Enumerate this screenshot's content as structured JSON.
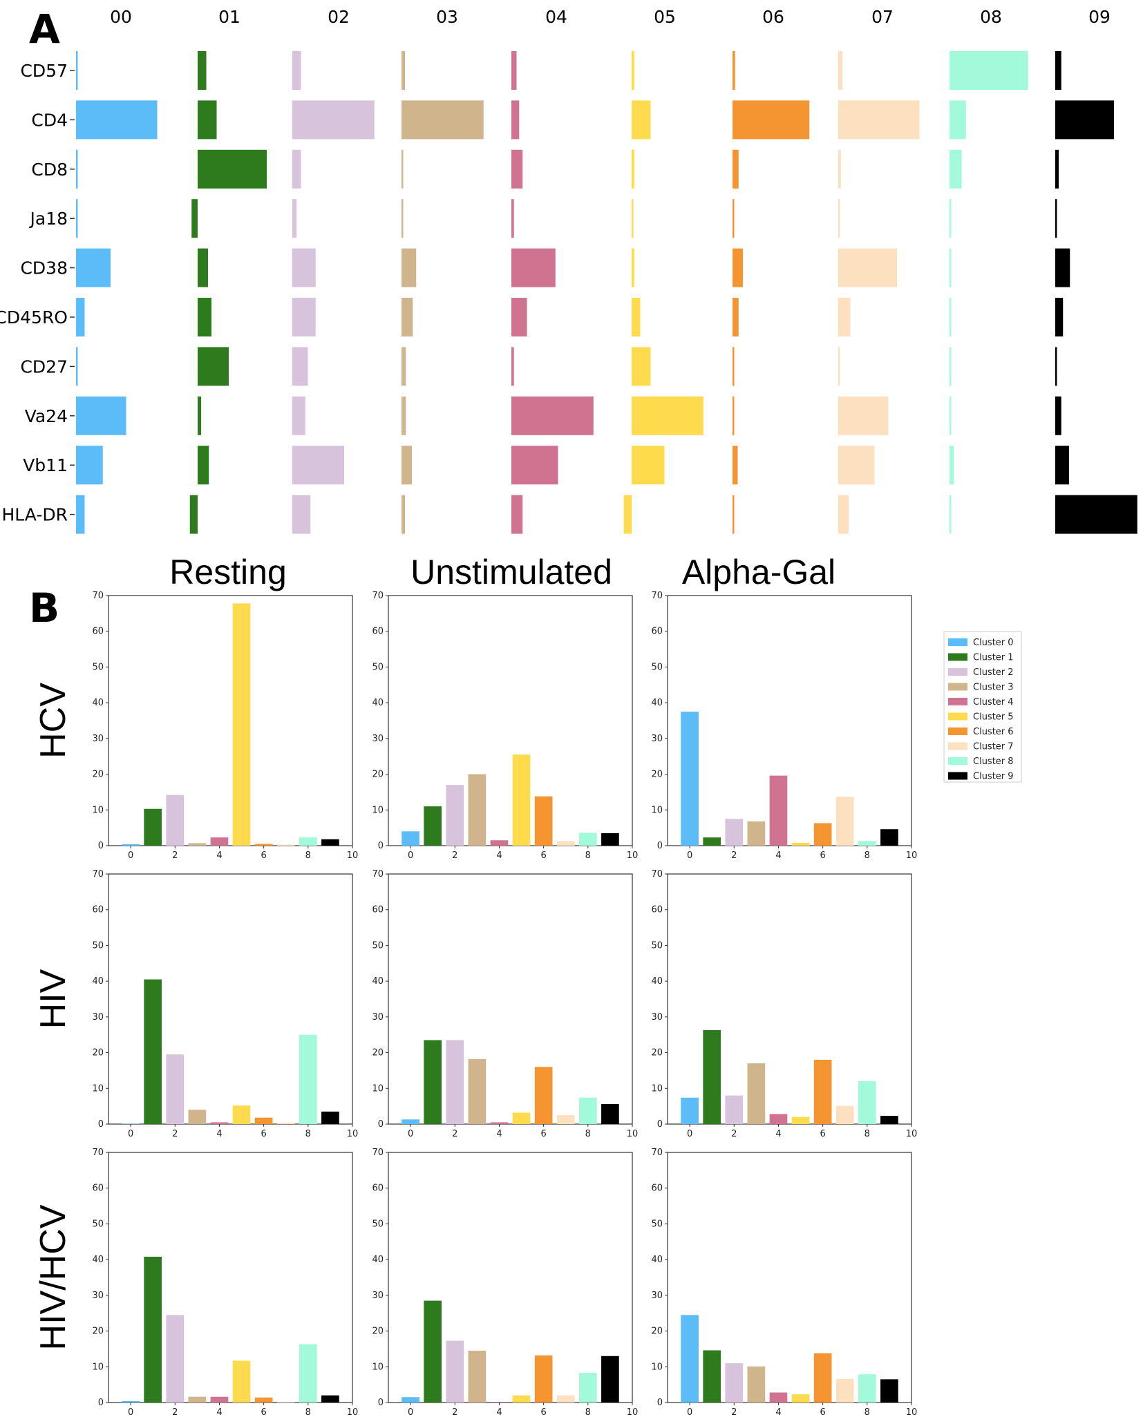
{
  "figure": {
    "panel_a_letter": "A",
    "panel_b_letter": "B"
  },
  "colors": {
    "cluster": [
      "#5bbcf7",
      "#2e7b1e",
      "#d8c3dc",
      "#d0b48c",
      "#cf7390",
      "#fedb4c",
      "#f59532",
      "#fde0c0",
      "#a2fadb",
      "#000000"
    ],
    "axis": "#333333"
  },
  "chart_data": [
    {
      "id": "panel-a",
      "type": "bar",
      "orientation": "horizontal",
      "title": "",
      "clusters": [
        "00",
        "01",
        "02",
        "03",
        "04",
        "05",
        "06",
        "07",
        "08",
        "09"
      ],
      "markers": [
        "CD57",
        "CD4",
        "CD8",
        "Ja18",
        "CD38",
        "CD45RO",
        "CD27",
        "Va24",
        "Vb11",
        "HLA-DR"
      ],
      "values": [
        [
          0.02,
          0.94,
          0.02,
          0.02,
          0.4,
          0.1,
          0.02,
          0.58,
          0.31,
          0.1
        ],
        [
          0.1,
          0.22,
          0.8,
          -0.07,
          0.12,
          0.16,
          0.36,
          0.04,
          0.13,
          -0.09
        ],
        [
          0.1,
          0.95,
          0.1,
          0.05,
          0.27,
          0.27,
          0.18,
          0.15,
          0.6,
          0.21
        ],
        [
          0.04,
          0.95,
          0.01,
          0.01,
          0.17,
          0.13,
          0.05,
          0.05,
          0.12,
          0.04
        ],
        [
          0.06,
          0.09,
          0.13,
          0.03,
          0.51,
          0.18,
          0.03,
          0.95,
          0.54,
          0.13
        ],
        [
          0.03,
          0.22,
          0.03,
          0.01,
          0.03,
          0.1,
          0.22,
          0.83,
          0.38,
          -0.09
        ],
        [
          0.03,
          0.89,
          0.07,
          0.01,
          0.12,
          0.07,
          0.02,
          0.02,
          0.06,
          0.02
        ],
        [
          0.05,
          0.94,
          0.03,
          0.01,
          0.68,
          0.14,
          0.02,
          0.58,
          0.42,
          0.12
        ],
        [
          0.91,
          0.19,
          0.14,
          0.01,
          0.02,
          0.02,
          0.02,
          0.02,
          0.05,
          0.01
        ],
        [
          0.07,
          0.68,
          0.04,
          0.0,
          0.17,
          0.09,
          0.01,
          0.07,
          0.16,
          0.95
        ]
      ]
    },
    {
      "id": "panel-b",
      "type": "bar",
      "columns": [
        "Resting",
        "Unstimulated",
        "Alpha-Gal"
      ],
      "rows": [
        "HCV",
        "HIV",
        "HIV/HCV"
      ],
      "xlim": [
        -1,
        10
      ],
      "ylim": [
        0,
        70
      ],
      "xticks": [
        "0",
        "2",
        "4",
        "6",
        "8",
        "10"
      ],
      "yticks": [
        "0",
        "10",
        "20",
        "30",
        "40",
        "50",
        "60",
        "70"
      ],
      "legend_position": "right",
      "legend": [
        "Cluster 0",
        "Cluster 1",
        "Cluster 2",
        "Cluster 3",
        "Cluster 4",
        "Cluster 5",
        "Cluster 6",
        "Cluster 7",
        "Cluster 8",
        "Cluster 9"
      ],
      "series": [
        {
          "name": "HCV Resting",
          "values": [
            0.4,
            10.3,
            14.2,
            0.7,
            2.3,
            67.8,
            0.5,
            0.3,
            2.3,
            1.8
          ]
        },
        {
          "name": "HCV Unstimulated",
          "values": [
            4.0,
            11.0,
            17.0,
            20.0,
            1.5,
            25.5,
            13.8,
            1.3,
            3.6,
            3.5
          ]
        },
        {
          "name": "HCV Alpha-Gal",
          "values": [
            37.5,
            2.3,
            7.5,
            6.8,
            19.6,
            0.8,
            6.3,
            13.7,
            1.3,
            4.6
          ]
        },
        {
          "name": "HIV Resting",
          "values": [
            0.1,
            40.5,
            19.5,
            4.0,
            0.5,
            5.2,
            1.8,
            0.4,
            25.0,
            3.5
          ]
        },
        {
          "name": "HIV Unstimulated",
          "values": [
            1.3,
            23.5,
            23.5,
            18.2,
            0.5,
            3.2,
            16.0,
            2.5,
            7.4,
            5.6
          ]
        },
        {
          "name": "HIV Alpha-Gal",
          "values": [
            7.4,
            26.3,
            8.0,
            17.0,
            2.8,
            2.0,
            18.0,
            5.1,
            12.0,
            2.3
          ]
        },
        {
          "name": "HIV/HCV Resting",
          "values": [
            0.4,
            40.8,
            24.5,
            1.6,
            1.6,
            11.7,
            1.4,
            0.1,
            16.3,
            2.0
          ]
        },
        {
          "name": "HIV/HCV Unstimulated",
          "values": [
            1.5,
            28.5,
            17.3,
            14.5,
            0.2,
            2.0,
            13.2,
            2.0,
            8.3,
            13.0
          ]
        },
        {
          "name": "HIV/HCV Alpha-Gal",
          "values": [
            24.5,
            14.6,
            11.0,
            10.1,
            2.8,
            2.3,
            13.8,
            6.6,
            7.9,
            6.5
          ]
        }
      ]
    }
  ]
}
